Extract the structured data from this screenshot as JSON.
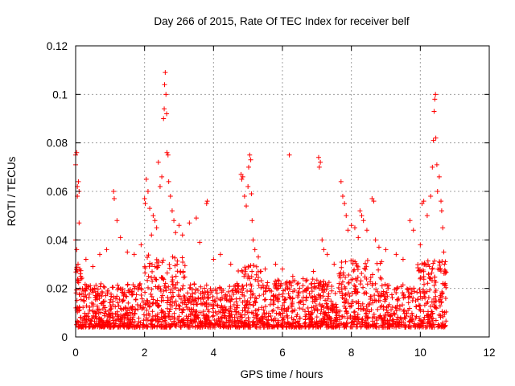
{
  "chart_data": {
    "type": "scatter",
    "title": "Day 266 of 2015, Rate Of TEC Index for receiver belf",
    "xlabel": "GPS time / hours",
    "ylabel": "ROTI / TECUs",
    "xlim": [
      0,
      12
    ],
    "ylim": [
      0,
      0.12
    ],
    "grid": true,
    "marker": "+",
    "color": "#ff0000",
    "x_ticks": [
      0,
      2,
      4,
      6,
      8,
      10,
      12
    ],
    "x_tick_labels": [
      "0",
      "2",
      "4",
      "6",
      "8",
      "10",
      "12"
    ],
    "y_ticks": [
      0,
      0.02,
      0.04,
      0.06,
      0.08,
      0.1,
      0.12
    ],
    "y_tick_labels": [
      "0",
      "0.02",
      "0.04",
      "0.06",
      "0.08",
      "0.1",
      "0.12"
    ],
    "series": [
      {
        "name": "ROTI",
        "points": [
          [
            0.0,
            0.075
          ],
          [
            0.0,
            0.071
          ],
          [
            0.03,
            0.076
          ],
          [
            0.05,
            0.062
          ],
          [
            0.05,
            0.058
          ],
          [
            0.08,
            0.064
          ],
          [
            0.1,
            0.06
          ],
          [
            0.1,
            0.047
          ],
          [
            0.0,
            0.04
          ],
          [
            0.03,
            0.036
          ],
          [
            0.07,
            0.03
          ],
          [
            0.12,
            0.028
          ],
          [
            0.15,
            0.025
          ],
          [
            0.3,
            0.032
          ],
          [
            0.5,
            0.029
          ],
          [
            0.7,
            0.034
          ],
          [
            0.9,
            0.036
          ],
          [
            1.1,
            0.06
          ],
          [
            1.12,
            0.057
          ],
          [
            1.2,
            0.048
          ],
          [
            1.3,
            0.041
          ],
          [
            1.5,
            0.035
          ],
          [
            1.7,
            0.034
          ],
          [
            1.9,
            0.038
          ],
          [
            2.0,
            0.057
          ],
          [
            2.02,
            0.055
          ],
          [
            2.05,
            0.065
          ],
          [
            2.1,
            0.06
          ],
          [
            2.15,
            0.053
          ],
          [
            2.2,
            0.042
          ],
          [
            2.25,
            0.05
          ],
          [
            2.3,
            0.048
          ],
          [
            2.35,
            0.045
          ],
          [
            2.4,
            0.072
          ],
          [
            2.45,
            0.062
          ],
          [
            2.5,
            0.066
          ],
          [
            2.55,
            0.09
          ],
          [
            2.57,
            0.094
          ],
          [
            2.58,
            0.104
          ],
          [
            2.6,
            0.109
          ],
          [
            2.62,
            0.1
          ],
          [
            2.64,
            0.092
          ],
          [
            2.65,
            0.076
          ],
          [
            2.68,
            0.075
          ],
          [
            2.7,
            0.064
          ],
          [
            2.75,
            0.058
          ],
          [
            2.8,
            0.052
          ],
          [
            2.85,
            0.048
          ],
          [
            2.9,
            0.043
          ],
          [
            3.0,
            0.046
          ],
          [
            3.1,
            0.042
          ],
          [
            3.3,
            0.047
          ],
          [
            3.5,
            0.049
          ],
          [
            3.6,
            0.039
          ],
          [
            3.8,
            0.055
          ],
          [
            3.82,
            0.056
          ],
          [
            4.0,
            0.032
          ],
          [
            4.2,
            0.034
          ],
          [
            4.5,
            0.03
          ],
          [
            4.8,
            0.067
          ],
          [
            4.82,
            0.065
          ],
          [
            4.85,
            0.066
          ],
          [
            4.9,
            0.058
          ],
          [
            4.95,
            0.054
          ],
          [
            5.0,
            0.062
          ],
          [
            5.02,
            0.07
          ],
          [
            5.05,
            0.075
          ],
          [
            5.08,
            0.073
          ],
          [
            5.1,
            0.059
          ],
          [
            5.12,
            0.048
          ],
          [
            5.15,
            0.04
          ],
          [
            5.2,
            0.036
          ],
          [
            5.3,
            0.033
          ],
          [
            5.5,
            0.028
          ],
          [
            5.8,
            0.03
          ],
          [
            6.0,
            0.028
          ],
          [
            6.2,
            0.075
          ],
          [
            6.3,
            0.025
          ],
          [
            6.6,
            0.024
          ],
          [
            6.9,
            0.027
          ],
          [
            7.05,
            0.074
          ],
          [
            7.07,
            0.07
          ],
          [
            7.1,
            0.072
          ],
          [
            7.15,
            0.04
          ],
          [
            7.2,
            0.036
          ],
          [
            7.3,
            0.034
          ],
          [
            7.5,
            0.03
          ],
          [
            7.7,
            0.064
          ],
          [
            7.75,
            0.058
          ],
          [
            7.8,
            0.055
          ],
          [
            7.85,
            0.05
          ],
          [
            7.9,
            0.044
          ],
          [
            8.0,
            0.046
          ],
          [
            8.1,
            0.045
          ],
          [
            8.2,
            0.041
          ],
          [
            8.25,
            0.052
          ],
          [
            8.3,
            0.05
          ],
          [
            8.35,
            0.048
          ],
          [
            8.45,
            0.044
          ],
          [
            8.6,
            0.057
          ],
          [
            8.65,
            0.056
          ],
          [
            8.7,
            0.04
          ],
          [
            8.8,
            0.037
          ],
          [
            9.0,
            0.036
          ],
          [
            9.3,
            0.034
          ],
          [
            9.5,
            0.032
          ],
          [
            9.7,
            0.048
          ],
          [
            9.8,
            0.044
          ],
          [
            10.0,
            0.038
          ],
          [
            10.05,
            0.055
          ],
          [
            10.1,
            0.056
          ],
          [
            10.2,
            0.05
          ],
          [
            10.3,
            0.058
          ],
          [
            10.35,
            0.07
          ],
          [
            10.38,
            0.081
          ],
          [
            10.4,
            0.093
          ],
          [
            10.42,
            0.098
          ],
          [
            10.44,
            0.1
          ],
          [
            10.45,
            0.082
          ],
          [
            10.48,
            0.071
          ],
          [
            10.5,
            0.06
          ],
          [
            10.55,
            0.066
          ],
          [
            10.6,
            0.056
          ],
          [
            10.62,
            0.052
          ],
          [
            10.65,
            0.045
          ],
          [
            10.68,
            0.035
          ],
          [
            10.7,
            0.03
          ],
          [
            10.72,
            0.022
          ]
        ]
      }
    ]
  }
}
